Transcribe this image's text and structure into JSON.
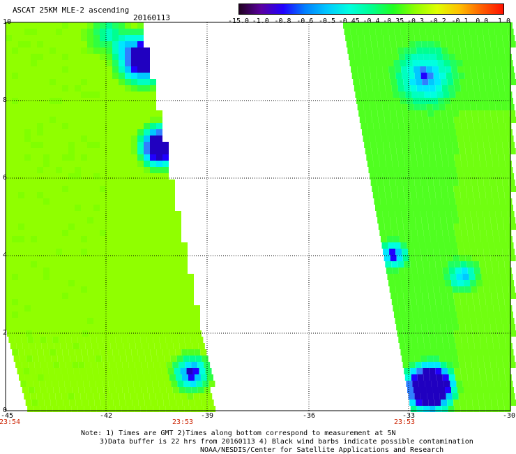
{
  "header": {
    "title": "ASCAT 25KM MLE-2 ascending",
    "date": "20160113"
  },
  "colorbar": {
    "labels": [
      "-15.0",
      "-1.0",
      "-0.8",
      "-0.6",
      "-0.5",
      "-0.45",
      "-0.4",
      "-0.35",
      "-0.3",
      "-0.2",
      "-0.1",
      "0.0",
      "1.0"
    ],
    "colors": [
      "#200020",
      "#5a00a0",
      "#2000ff",
      "#0080ff",
      "#00c8ff",
      "#00ffe0",
      "#00ff90",
      "#20ff20",
      "#90ff00",
      "#e0ff00",
      "#ffc000",
      "#ff6000",
      "#ff1000"
    ]
  },
  "axes": {
    "x_ticks": [
      "-45",
      "-42",
      "-39",
      "-36",
      "-33",
      "-30"
    ],
    "y_ticks": [
      "0",
      "2",
      "4",
      "6",
      "8",
      "10"
    ],
    "times": [
      "23:54",
      "23:53",
      "23:53"
    ]
  },
  "notes": {
    "line1": "Note: 1) Times are GMT 2)Times along bottom correspond to measurement at 5N",
    "line2": "3)Data buffer is 22 hrs from 20160113 4) Black wind barbs indicate possible contamination",
    "line3": "NOAA/NESDIS/Center for Satellite Applications and Research"
  }
}
